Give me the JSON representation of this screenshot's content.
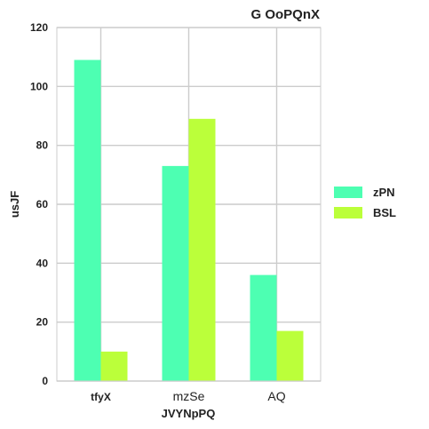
{
  "chart_data": {
    "type": "bar",
    "title": "G OoPQnX",
    "xlabel": "JVYNpPQ",
    "ylabel": "usJF",
    "categories": [
      "tfyX",
      "mzSe",
      "AQ"
    ],
    "series": [
      {
        "name": "zPN",
        "values": [
          109,
          73,
          36
        ],
        "color": "#4dffb2"
      },
      {
        "name": "BSL",
        "values": [
          10,
          89,
          17
        ],
        "color": "#bbff3a"
      }
    ],
    "ylim": [
      0,
      120
    ],
    "yticks": [
      0,
      20,
      40,
      60,
      80,
      100,
      120
    ],
    "grid": true,
    "legend": "right"
  }
}
